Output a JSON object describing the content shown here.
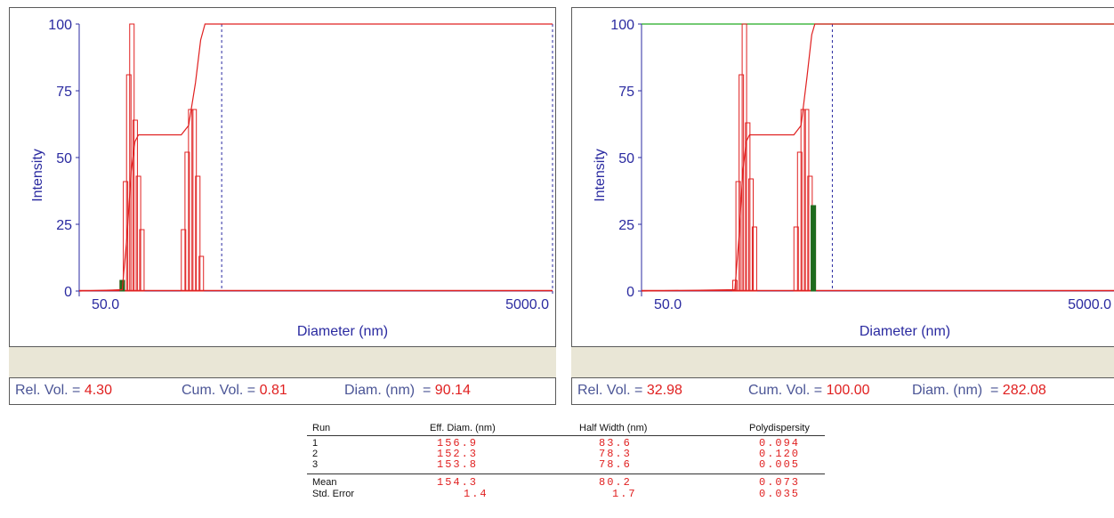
{
  "chart_data": [
    {
      "type": "bar",
      "xlabel": "Diameter (nm)",
      "ylabel": "Intensity",
      "x_scale": "log",
      "xlim": [
        50.0,
        5000.0
      ],
      "ylim": [
        0,
        100
      ],
      "x_tick_labels": [
        "50.0",
        "5000.0"
      ],
      "y_ticks": [
        0,
        25,
        50,
        75,
        100
      ],
      "bars": [
        {
          "x": 76.0,
          "value": 4
        },
        {
          "x": 78.5,
          "value": 41
        },
        {
          "x": 81.0,
          "value": 81
        },
        {
          "x": 83.5,
          "value": 100
        },
        {
          "x": 86.2,
          "value": 64
        },
        {
          "x": 89.0,
          "value": 43
        },
        {
          "x": 92.0,
          "value": 23
        },
        {
          "x": 138.0,
          "value": 23
        },
        {
          "x": 143.0,
          "value": 52
        },
        {
          "x": 148.0,
          "value": 68
        },
        {
          "x": 153.0,
          "value": 68
        },
        {
          "x": 158.5,
          "value": 43
        },
        {
          "x": 164.0,
          "value": 13
        }
      ],
      "highlight_bar": {
        "x": 76.0,
        "value": 4
      },
      "cumulative_curve": [
        [
          50.0,
          0
        ],
        [
          76.0,
          0.5
        ],
        [
          79.5,
          20
        ],
        [
          83.0,
          45
        ],
        [
          86.0,
          56
        ],
        [
          89.0,
          58.5
        ],
        [
          110.0,
          58.5
        ],
        [
          135.0,
          58.5
        ],
        [
          145.0,
          62
        ],
        [
          155.0,
          78
        ],
        [
          163.0,
          94
        ],
        [
          170.0,
          100
        ],
        [
          5000.0,
          100
        ]
      ],
      "cursor_x": 200.0,
      "info": {
        "rel_vol_label": "Rel. Vol. = ",
        "rel_vol": "4.30",
        "cum_vol_label": "Cum. Vol. = ",
        "cum_vol": "0.81",
        "diam_label": "Diam. (nm)  = ",
        "diam": "90.14"
      }
    },
    {
      "type": "bar",
      "xlabel": "Diameter (nm)",
      "ylabel": "Intensity",
      "x_scale": "log",
      "xlim": [
        50.0,
        5000.0
      ],
      "ylim": [
        0,
        100
      ],
      "x_tick_labels": [
        "50.0",
        "5000.0"
      ],
      "y_ticks": [
        0,
        25,
        50,
        75,
        100
      ],
      "bars": [
        {
          "x": 124.0,
          "value": 4
        },
        {
          "x": 128.0,
          "value": 41
        },
        {
          "x": 132.0,
          "value": 81
        },
        {
          "x": 136.0,
          "value": 100
        },
        {
          "x": 140.5,
          "value": 63
        },
        {
          "x": 145.0,
          "value": 42
        },
        {
          "x": 150.0,
          "value": 24
        },
        {
          "x": 225.0,
          "value": 24
        },
        {
          "x": 233.0,
          "value": 52
        },
        {
          "x": 241.0,
          "value": 68
        },
        {
          "x": 249.0,
          "value": 68
        },
        {
          "x": 257.5,
          "value": 43
        },
        {
          "x": 266.0,
          "value": 32
        }
      ],
      "highlight_bar": {
        "x": 266.0,
        "value": 32
      },
      "cumulative_curve": [
        [
          50.0,
          0
        ],
        [
          124.0,
          0.5
        ],
        [
          129.0,
          20
        ],
        [
          134.0,
          45
        ],
        [
          138.5,
          56
        ],
        [
          143.0,
          58.5
        ],
        [
          180.0,
          58.5
        ],
        [
          220.0,
          58.5
        ],
        [
          236.0,
          62
        ],
        [
          250.0,
          80
        ],
        [
          262.0,
          96
        ],
        [
          270.0,
          100
        ],
        [
          5000.0,
          100
        ]
      ],
      "cursor_x": 320.0,
      "top_line": 100,
      "info": {
        "rel_vol_label": "Rel. Vol. = ",
        "rel_vol": "32.98",
        "cum_vol_label": "Cum. Vol. = ",
        "cum_vol": "100.00",
        "diam_label": "Diam. (nm)  = ",
        "diam": "282.08"
      }
    }
  ],
  "colors": {
    "bar": "#e02020",
    "highlight": "#1e6b1e",
    "axis": "#2a2aa0",
    "top_line": "#22aa22",
    "value": "#e02020",
    "label": "#4b5596"
  },
  "stats_table": {
    "headers": [
      "Run",
      "Eff. Diam. (nm)",
      "Half Width (nm)",
      "Polydispersity"
    ],
    "rows": [
      [
        "1",
        "156.9",
        "83.6",
        "0.094"
      ],
      [
        "2",
        "152.3",
        "78.3",
        "0.120"
      ],
      [
        "3",
        "153.8",
        "78.6",
        "0.005"
      ]
    ],
    "summary": [
      [
        "Mean",
        "154.3",
        "80.2",
        "0.073"
      ],
      [
        "Std. Error",
        "1.4",
        "1.7",
        "0.035"
      ]
    ]
  }
}
